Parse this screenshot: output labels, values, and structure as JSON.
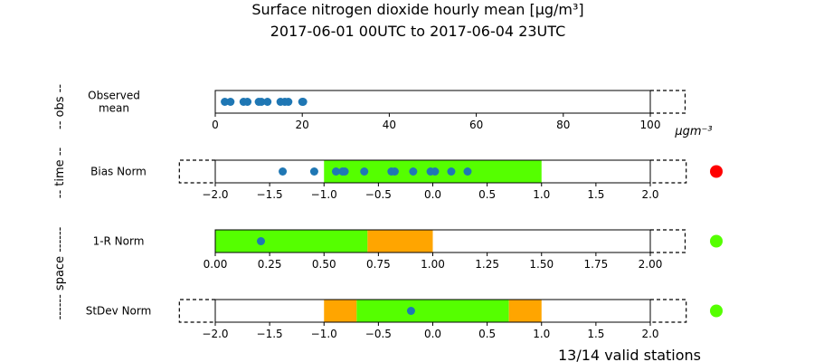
{
  "title_line1": "Surface nitrogen dioxide hourly mean [μg/m³]",
  "title_line2": "2017-06-01 00UTC to 2017-06-04 23UTC",
  "footer": "13/14 valid stations",
  "group_labels": {
    "obs": "-- obs --",
    "time": "-- time --",
    "space": "------ space ------"
  },
  "colors": {
    "marker": "#1f77b4",
    "good": "#55ff00",
    "warn": "#ffa500",
    "bad": "#ff0000"
  },
  "chart_data": [
    {
      "type": "scatter",
      "row_label_lines": [
        "Observed",
        "mean"
      ],
      "xlim": [
        0,
        100
      ],
      "x_extended": 108,
      "ticks": [
        0,
        20,
        40,
        60,
        80,
        100
      ],
      "tick_labels": [
        "0",
        "20",
        "40",
        "60",
        "80",
        "100"
      ],
      "unit_label": "μgm⁻³",
      "bands": [],
      "points": [
        2.2,
        3.5,
        6.5,
        7.4,
        10,
        10.6,
        12,
        15,
        16,
        16.8,
        20,
        20.2
      ],
      "status": null
    },
    {
      "type": "scatter",
      "row_label_lines": [
        "Bias Norm"
      ],
      "xlim": [
        -2,
        2
      ],
      "x_extended": [
        -2.33,
        2.33
      ],
      "ticks": [
        -2,
        -1.5,
        -1,
        -0.5,
        0,
        0.5,
        1,
        1.5,
        2
      ],
      "tick_labels": [
        "−2.0",
        "−1.5",
        "−1.0",
        "−0.5",
        "0.0",
        "0.5",
        "1.0",
        "1.5",
        "2.0"
      ],
      "bands": [
        {
          "from": -1,
          "to": 1,
          "level": "good"
        }
      ],
      "points": [
        -1.38,
        -1.09,
        -0.89,
        -0.83,
        -0.81,
        -0.63,
        -0.38,
        -0.35,
        -0.18,
        -0.02,
        0.02,
        0.17,
        0.32
      ],
      "status": "bad"
    },
    {
      "type": "scatter",
      "row_label_lines": [
        "1-R Norm"
      ],
      "xlim": [
        0,
        2
      ],
      "x_extended": 2.16,
      "ticks": [
        0,
        0.25,
        0.5,
        0.75,
        1,
        1.25,
        1.5,
        1.75,
        2
      ],
      "tick_labels": [
        "0.00",
        "0.25",
        "0.50",
        "0.75",
        "1.00",
        "1.25",
        "1.50",
        "1.75",
        "2.00"
      ],
      "bands": [
        {
          "from": 0,
          "to": 0.7,
          "level": "good"
        },
        {
          "from": 0.7,
          "to": 1,
          "level": "warn"
        }
      ],
      "points": [
        0.21
      ],
      "status": "good"
    },
    {
      "type": "scatter",
      "row_label_lines": [
        "StDev Norm"
      ],
      "xlim": [
        -2,
        2
      ],
      "x_extended": [
        -2.33,
        2.33
      ],
      "ticks": [
        -2,
        -1.5,
        -1,
        -0.5,
        0,
        0.5,
        1,
        1.5,
        2
      ],
      "tick_labels": [
        "−2.0",
        "−1.5",
        "−1.0",
        "−0.5",
        "0.0",
        "0.5",
        "1.0",
        "1.5",
        "2.0"
      ],
      "bands": [
        {
          "from": -1,
          "to": -0.7,
          "level": "warn"
        },
        {
          "from": -0.7,
          "to": 0.7,
          "level": "good"
        },
        {
          "from": 0.7,
          "to": 1,
          "level": "warn"
        }
      ],
      "points": [
        -0.2
      ],
      "status": "good"
    }
  ]
}
